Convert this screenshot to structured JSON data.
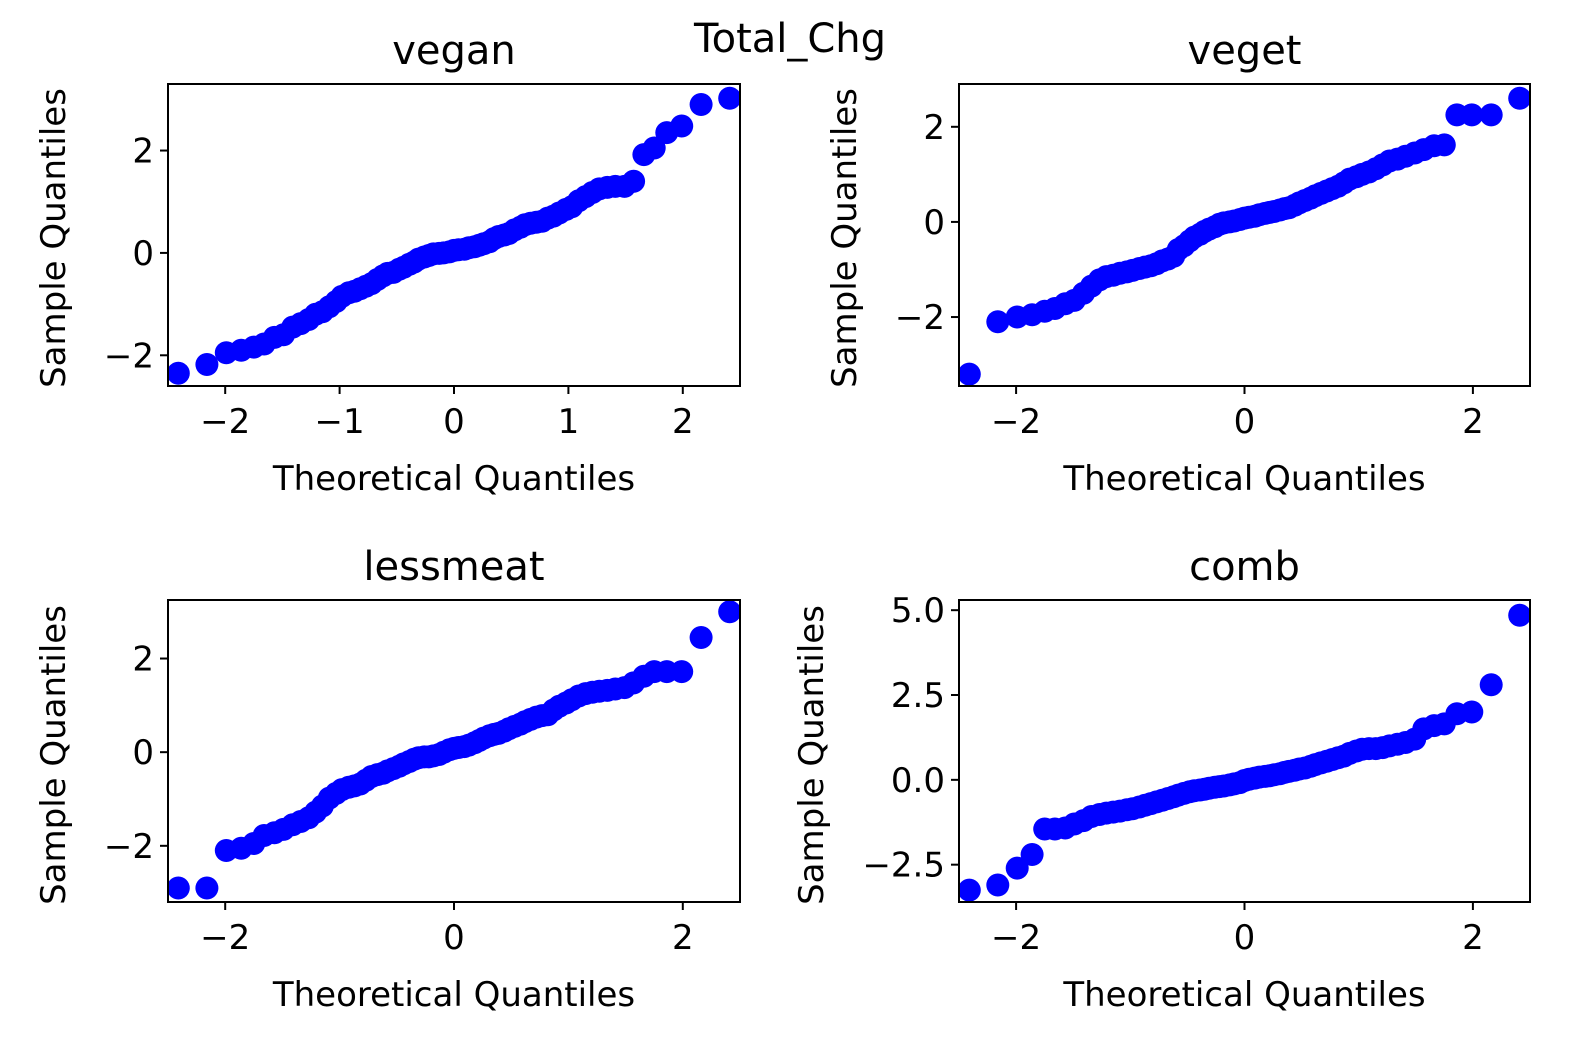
{
  "figure": {
    "suptitle": "Total_Chg",
    "marker_color": "#0000ff"
  },
  "chart_data": [
    {
      "type": "scatter",
      "title": "vegan",
      "xlabel": "Theoretical Quantiles",
      "ylabel": "Sample Quantiles",
      "xlim": [
        -2.5,
        2.5
      ],
      "ylim": [
        -2.6,
        3.3
      ],
      "xticks": [
        -2,
        -1,
        0,
        1,
        2
      ],
      "xtick_labels": [
        "−2",
        "−1",
        "0",
        "1",
        "2"
      ],
      "yticks": [
        -2,
        0,
        2
      ],
      "ytick_labels": [
        "−2",
        "0",
        "2"
      ],
      "points": [
        [
          -2.41,
          -2.35
        ],
        [
          -2.16,
          -2.18
        ],
        [
          -1.99,
          -1.95
        ],
        [
          -1.86,
          -1.9
        ],
        [
          -1.75,
          -1.84
        ],
        [
          -1.66,
          -1.78
        ],
        [
          -1.57,
          -1.65
        ],
        [
          -1.49,
          -1.6
        ],
        [
          -1.41,
          -1.45
        ],
        [
          -1.34,
          -1.38
        ],
        [
          -1.27,
          -1.3
        ],
        [
          -1.21,
          -1.2
        ],
        [
          -1.15,
          -1.15
        ],
        [
          -1.09,
          -1.05
        ],
        [
          -1.03,
          -0.95
        ],
        [
          -0.98,
          -0.85
        ],
        [
          -0.92,
          -0.78
        ],
        [
          -0.87,
          -0.75
        ],
        [
          -0.82,
          -0.7
        ],
        [
          -0.77,
          -0.65
        ],
        [
          -0.72,
          -0.6
        ],
        [
          -0.67,
          -0.52
        ],
        [
          -0.62,
          -0.45
        ],
        [
          -0.58,
          -0.4
        ],
        [
          -0.53,
          -0.38
        ],
        [
          -0.48,
          -0.32
        ],
        [
          -0.44,
          -0.28
        ],
        [
          -0.39,
          -0.22
        ],
        [
          -0.35,
          -0.18
        ],
        [
          -0.31,
          -0.12
        ],
        [
          -0.26,
          -0.08
        ],
        [
          -0.22,
          -0.05
        ],
        [
          -0.18,
          -0.02
        ],
        [
          -0.13,
          -0.01
        ],
        [
          -0.09,
          0.0
        ],
        [
          -0.04,
          0.02
        ],
        [
          0.0,
          0.05
        ],
        [
          0.04,
          0.06
        ],
        [
          0.09,
          0.07
        ],
        [
          0.13,
          0.1
        ],
        [
          0.18,
          0.12
        ],
        [
          0.22,
          0.15
        ],
        [
          0.26,
          0.18
        ],
        [
          0.31,
          0.22
        ],
        [
          0.35,
          0.28
        ],
        [
          0.39,
          0.32
        ],
        [
          0.44,
          0.35
        ],
        [
          0.48,
          0.38
        ],
        [
          0.53,
          0.45
        ],
        [
          0.58,
          0.5
        ],
        [
          0.62,
          0.55
        ],
        [
          0.67,
          0.58
        ],
        [
          0.72,
          0.6
        ],
        [
          0.77,
          0.62
        ],
        [
          0.82,
          0.68
        ],
        [
          0.87,
          0.72
        ],
        [
          0.92,
          0.78
        ],
        [
          0.98,
          0.85
        ],
        [
          1.03,
          0.9
        ],
        [
          1.09,
          1.02
        ],
        [
          1.15,
          1.1
        ],
        [
          1.21,
          1.18
        ],
        [
          1.27,
          1.25
        ],
        [
          1.34,
          1.28
        ],
        [
          1.41,
          1.3
        ],
        [
          1.49,
          1.3
        ],
        [
          1.57,
          1.4
        ],
        [
          1.66,
          1.92
        ],
        [
          1.75,
          2.05
        ],
        [
          1.86,
          2.35
        ],
        [
          1.99,
          2.48
        ],
        [
          2.16,
          2.9
        ],
        [
          2.41,
          3.02
        ]
      ]
    },
    {
      "type": "scatter",
      "title": "veget",
      "xlabel": "Theoretical Quantiles",
      "ylabel": "Sample Quantiles",
      "xlim": [
        -2.5,
        2.5
      ],
      "ylim": [
        -3.45,
        2.9
      ],
      "xticks": [
        -2,
        0,
        2
      ],
      "xtick_labels": [
        "−2",
        "0",
        "2"
      ],
      "yticks": [
        -2,
        0,
        2
      ],
      "ytick_labels": [
        "−2",
        "0",
        "2"
      ],
      "points": [
        [
          -2.41,
          -3.2
        ],
        [
          -2.16,
          -2.1
        ],
        [
          -1.99,
          -2.0
        ],
        [
          -1.86,
          -1.95
        ],
        [
          -1.75,
          -1.88
        ],
        [
          -1.66,
          -1.82
        ],
        [
          -1.57,
          -1.72
        ],
        [
          -1.49,
          -1.65
        ],
        [
          -1.41,
          -1.5
        ],
        [
          -1.34,
          -1.35
        ],
        [
          -1.27,
          -1.22
        ],
        [
          -1.21,
          -1.15
        ],
        [
          -1.15,
          -1.12
        ],
        [
          -1.09,
          -1.08
        ],
        [
          -1.03,
          -1.05
        ],
        [
          -0.98,
          -1.02
        ],
        [
          -0.92,
          -0.98
        ],
        [
          -0.87,
          -0.95
        ],
        [
          -0.82,
          -0.92
        ],
        [
          -0.77,
          -0.88
        ],
        [
          -0.72,
          -0.82
        ],
        [
          -0.67,
          -0.78
        ],
        [
          -0.62,
          -0.72
        ],
        [
          -0.58,
          -0.58
        ],
        [
          -0.53,
          -0.5
        ],
        [
          -0.48,
          -0.4
        ],
        [
          -0.44,
          -0.32
        ],
        [
          -0.39,
          -0.26
        ],
        [
          -0.35,
          -0.2
        ],
        [
          -0.31,
          -0.15
        ],
        [
          -0.26,
          -0.1
        ],
        [
          -0.22,
          -0.05
        ],
        [
          -0.18,
          -0.02
        ],
        [
          -0.13,
          0.0
        ],
        [
          -0.09,
          0.02
        ],
        [
          -0.04,
          0.05
        ],
        [
          0.0,
          0.08
        ],
        [
          0.04,
          0.1
        ],
        [
          0.09,
          0.12
        ],
        [
          0.13,
          0.15
        ],
        [
          0.18,
          0.18
        ],
        [
          0.22,
          0.2
        ],
        [
          0.26,
          0.22
        ],
        [
          0.31,
          0.25
        ],
        [
          0.35,
          0.28
        ],
        [
          0.39,
          0.3
        ],
        [
          0.44,
          0.35
        ],
        [
          0.48,
          0.4
        ],
        [
          0.53,
          0.45
        ],
        [
          0.58,
          0.5
        ],
        [
          0.62,
          0.55
        ],
        [
          0.67,
          0.6
        ],
        [
          0.72,
          0.65
        ],
        [
          0.77,
          0.7
        ],
        [
          0.82,
          0.75
        ],
        [
          0.87,
          0.82
        ],
        [
          0.92,
          0.9
        ],
        [
          0.98,
          0.95
        ],
        [
          1.03,
          1.0
        ],
        [
          1.09,
          1.05
        ],
        [
          1.15,
          1.12
        ],
        [
          1.21,
          1.2
        ],
        [
          1.27,
          1.28
        ],
        [
          1.34,
          1.32
        ],
        [
          1.41,
          1.38
        ],
        [
          1.49,
          1.45
        ],
        [
          1.57,
          1.52
        ],
        [
          1.66,
          1.6
        ],
        [
          1.75,
          1.62
        ],
        [
          1.86,
          2.25
        ],
        [
          1.99,
          2.25
        ],
        [
          2.16,
          2.25
        ],
        [
          2.41,
          2.6
        ]
      ]
    },
    {
      "type": "scatter",
      "title": "lessmeat",
      "xlabel": "Theoretical Quantiles",
      "ylabel": "Sample Quantiles",
      "xlim": [
        -2.5,
        2.5
      ],
      "ylim": [
        -3.2,
        3.25
      ],
      "xticks": [
        -2,
        0,
        2
      ],
      "xtick_labels": [
        "−2",
        "0",
        "2"
      ],
      "yticks": [
        -2,
        0,
        2
      ],
      "ytick_labels": [
        "−2",
        "0",
        "2"
      ],
      "points": [
        [
          -2.41,
          -2.9
        ],
        [
          -2.16,
          -2.9
        ],
        [
          -1.99,
          -2.1
        ],
        [
          -1.86,
          -2.05
        ],
        [
          -1.75,
          -1.95
        ],
        [
          -1.66,
          -1.78
        ],
        [
          -1.57,
          -1.72
        ],
        [
          -1.49,
          -1.65
        ],
        [
          -1.41,
          -1.55
        ],
        [
          -1.34,
          -1.48
        ],
        [
          -1.27,
          -1.4
        ],
        [
          -1.21,
          -1.28
        ],
        [
          -1.15,
          -1.15
        ],
        [
          -1.09,
          -0.98
        ],
        [
          -1.03,
          -0.88
        ],
        [
          -0.98,
          -0.8
        ],
        [
          -0.92,
          -0.75
        ],
        [
          -0.87,
          -0.72
        ],
        [
          -0.82,
          -0.68
        ],
        [
          -0.77,
          -0.6
        ],
        [
          -0.72,
          -0.52
        ],
        [
          -0.67,
          -0.48
        ],
        [
          -0.62,
          -0.45
        ],
        [
          -0.58,
          -0.4
        ],
        [
          -0.53,
          -0.35
        ],
        [
          -0.48,
          -0.3
        ],
        [
          -0.44,
          -0.25
        ],
        [
          -0.39,
          -0.2
        ],
        [
          -0.35,
          -0.15
        ],
        [
          -0.31,
          -0.12
        ],
        [
          -0.26,
          -0.1
        ],
        [
          -0.22,
          -0.1
        ],
        [
          -0.18,
          -0.08
        ],
        [
          -0.13,
          -0.05
        ],
        [
          -0.09,
          0.0
        ],
        [
          -0.04,
          0.05
        ],
        [
          0.0,
          0.08
        ],
        [
          0.04,
          0.1
        ],
        [
          0.09,
          0.12
        ],
        [
          0.13,
          0.15
        ],
        [
          0.18,
          0.2
        ],
        [
          0.22,
          0.25
        ],
        [
          0.26,
          0.3
        ],
        [
          0.31,
          0.35
        ],
        [
          0.35,
          0.38
        ],
        [
          0.39,
          0.4
        ],
        [
          0.44,
          0.45
        ],
        [
          0.48,
          0.5
        ],
        [
          0.53,
          0.55
        ],
        [
          0.58,
          0.6
        ],
        [
          0.62,
          0.65
        ],
        [
          0.67,
          0.7
        ],
        [
          0.72,
          0.75
        ],
        [
          0.77,
          0.78
        ],
        [
          0.82,
          0.8
        ],
        [
          0.87,
          0.9
        ],
        [
          0.92,
          0.98
        ],
        [
          0.98,
          1.05
        ],
        [
          1.03,
          1.12
        ],
        [
          1.09,
          1.2
        ],
        [
          1.15,
          1.25
        ],
        [
          1.21,
          1.28
        ],
        [
          1.27,
          1.3
        ],
        [
          1.34,
          1.32
        ],
        [
          1.41,
          1.35
        ],
        [
          1.49,
          1.38
        ],
        [
          1.57,
          1.48
        ],
        [
          1.66,
          1.62
        ],
        [
          1.75,
          1.72
        ],
        [
          1.86,
          1.72
        ],
        [
          1.99,
          1.72
        ],
        [
          2.16,
          2.45
        ],
        [
          2.41,
          3.0
        ]
      ]
    },
    {
      "type": "scatter",
      "title": "comb",
      "xlabel": "Theoretical Quantiles",
      "ylabel": "Sample Quantiles",
      "xlim": [
        -2.5,
        2.5
      ],
      "ylim": [
        -3.6,
        5.3
      ],
      "xticks": [
        -2,
        0,
        2
      ],
      "xtick_labels": [
        "−2",
        "0",
        "2"
      ],
      "yticks": [
        -2.5,
        0.0,
        2.5,
        5.0
      ],
      "ytick_labels": [
        "−2.5",
        "0.0",
        "2.5",
        "5.0"
      ],
      "points": [
        [
          -2.41,
          -3.25
        ],
        [
          -2.16,
          -3.1
        ],
        [
          -1.99,
          -2.6
        ],
        [
          -1.86,
          -2.2
        ],
        [
          -1.75,
          -1.45
        ],
        [
          -1.66,
          -1.45
        ],
        [
          -1.57,
          -1.42
        ],
        [
          -1.49,
          -1.3
        ],
        [
          -1.41,
          -1.2
        ],
        [
          -1.34,
          -1.08
        ],
        [
          -1.27,
          -1.02
        ],
        [
          -1.21,
          -0.98
        ],
        [
          -1.15,
          -0.95
        ],
        [
          -1.09,
          -0.92
        ],
        [
          -1.03,
          -0.88
        ],
        [
          -0.98,
          -0.85
        ],
        [
          -0.92,
          -0.8
        ],
        [
          -0.87,
          -0.75
        ],
        [
          -0.82,
          -0.7
        ],
        [
          -0.77,
          -0.65
        ],
        [
          -0.72,
          -0.6
        ],
        [
          -0.67,
          -0.55
        ],
        [
          -0.62,
          -0.5
        ],
        [
          -0.58,
          -0.45
        ],
        [
          -0.53,
          -0.4
        ],
        [
          -0.48,
          -0.35
        ],
        [
          -0.44,
          -0.32
        ],
        [
          -0.39,
          -0.3
        ],
        [
          -0.35,
          -0.28
        ],
        [
          -0.31,
          -0.25
        ],
        [
          -0.26,
          -0.22
        ],
        [
          -0.22,
          -0.2
        ],
        [
          -0.18,
          -0.18
        ],
        [
          -0.13,
          -0.15
        ],
        [
          -0.09,
          -0.12
        ],
        [
          -0.04,
          -0.08
        ],
        [
          0.0,
          -0.02
        ],
        [
          0.04,
          0.02
        ],
        [
          0.09,
          0.05
        ],
        [
          0.13,
          0.08
        ],
        [
          0.18,
          0.1
        ],
        [
          0.22,
          0.12
        ],
        [
          0.26,
          0.15
        ],
        [
          0.31,
          0.18
        ],
        [
          0.35,
          0.22
        ],
        [
          0.39,
          0.25
        ],
        [
          0.44,
          0.28
        ],
        [
          0.48,
          0.32
        ],
        [
          0.53,
          0.35
        ],
        [
          0.58,
          0.4
        ],
        [
          0.62,
          0.45
        ],
        [
          0.67,
          0.5
        ],
        [
          0.72,
          0.55
        ],
        [
          0.77,
          0.6
        ],
        [
          0.82,
          0.65
        ],
        [
          0.87,
          0.7
        ],
        [
          0.92,
          0.78
        ],
        [
          0.98,
          0.85
        ],
        [
          1.03,
          0.9
        ],
        [
          1.09,
          0.92
        ],
        [
          1.15,
          0.92
        ],
        [
          1.21,
          0.95
        ],
        [
          1.27,
          1.0
        ],
        [
          1.34,
          1.05
        ],
        [
          1.41,
          1.1
        ],
        [
          1.49,
          1.2
        ],
        [
          1.57,
          1.5
        ],
        [
          1.66,
          1.6
        ],
        [
          1.75,
          1.65
        ],
        [
          1.86,
          1.95
        ],
        [
          1.99,
          2.0
        ],
        [
          2.16,
          2.8
        ],
        [
          2.41,
          4.85
        ]
      ]
    }
  ]
}
